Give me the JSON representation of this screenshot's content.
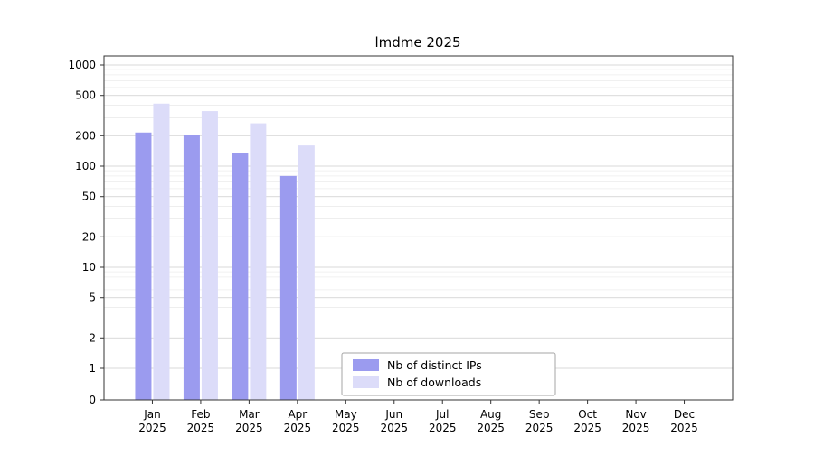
{
  "chart_data": {
    "type": "bar",
    "title": "lmdme 2025",
    "categories": [
      "Jan",
      "Feb",
      "Mar",
      "Apr",
      "May",
      "Jun",
      "Jul",
      "Aug",
      "Sep",
      "Oct",
      "Nov",
      "Dec"
    ],
    "year_label": "2025",
    "series": [
      {
        "name": "Nb of distinct IPs",
        "color": "#9b9bef",
        "values": [
          215,
          205,
          135,
          80,
          0,
          0,
          0,
          0,
          0,
          0,
          0,
          0
        ]
      },
      {
        "name": "Nb of downloads",
        "color": "#dcdcf9",
        "values": [
          415,
          350,
          265,
          160,
          0,
          0,
          0,
          0,
          0,
          0,
          0,
          0
        ]
      }
    ],
    "yscale": "symlog",
    "yticks": [
      0,
      1,
      2,
      5,
      10,
      20,
      50,
      100,
      200,
      500,
      1000
    ],
    "ylim": [
      0,
      1300
    ],
    "xlabel": "",
    "ylabel": "",
    "grid": true,
    "legend_position": "lower center",
    "colors": {
      "grid_major": "#d8d8d8",
      "grid_minor": "#ececec",
      "axis": "#333333",
      "legend_border": "#a6a6a6",
      "legend_bg": "#ffffff"
    }
  }
}
